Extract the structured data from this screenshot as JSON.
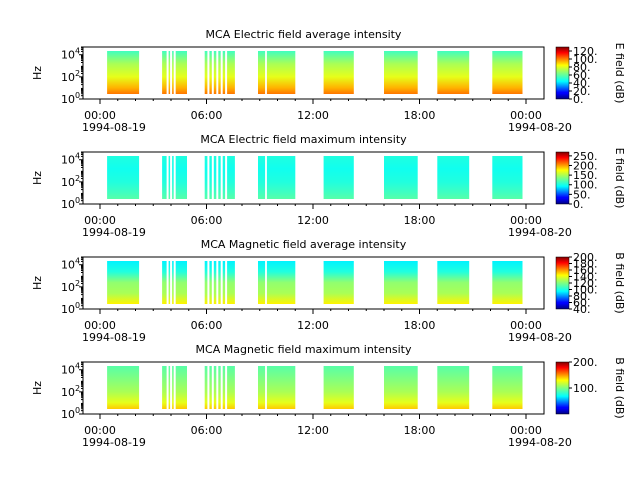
{
  "chart_data": [
    {
      "type": "heatmap",
      "title": "MCA  Electric field average intensity",
      "ylabel": "Hz",
      "yscale": "log",
      "ylim": [
        1,
        50000
      ],
      "yticks": [
        "10^0",
        "10^2",
        "10^4"
      ],
      "xticks": [
        "00:00",
        "06:00",
        "12:00",
        "18:00",
        "00:00"
      ],
      "date_start": "1994-08-19",
      "date_end": "1994-08-20",
      "colorbar": {
        "label": "E field (dB)",
        "min": 0,
        "max": 130,
        "ticks": [
          "0.",
          "20.",
          "40.",
          "60.",
          "80.",
          "100.",
          "120."
        ]
      },
      "palette": "average_e"
    },
    {
      "type": "heatmap",
      "title": "MCA  Electric field maximum intensity",
      "ylabel": "Hz",
      "yscale": "log",
      "ylim": [
        1,
        50000
      ],
      "yticks": [
        "10^0",
        "10^2",
        "10^4"
      ],
      "xticks": [
        "00:00",
        "06:00",
        "12:00",
        "18:00",
        "00:00"
      ],
      "date_start": "1994-08-19",
      "date_end": "1994-08-20",
      "colorbar": {
        "label": "E field (dB)",
        "min": 0,
        "max": 270,
        "ticks": [
          "0.",
          "50.",
          "100.",
          "150.",
          "200.",
          "250."
        ]
      },
      "palette": "max_e"
    },
    {
      "type": "heatmap",
      "title": "MCA  Magnetic field average intensity",
      "ylabel": "Hz",
      "yscale": "log",
      "ylim": [
        1,
        50000
      ],
      "yticks": [
        "10^0",
        "10^2",
        "10^4"
      ],
      "xticks": [
        "00:00",
        "06:00",
        "12:00",
        "18:00",
        "00:00"
      ],
      "date_start": "1994-08-19",
      "date_end": "1994-08-20",
      "colorbar": {
        "label": "B field (dB)",
        "min": 40,
        "max": 200,
        "ticks": [
          "40.",
          "60.",
          "80.",
          "100.",
          "120.",
          "140.",
          "160.",
          "180.",
          "200."
        ]
      },
      "palette": "average_b"
    },
    {
      "type": "heatmap",
      "title": "MCA  Magnetic field maximum intensity",
      "ylabel": "Hz",
      "yscale": "log",
      "ylim": [
        1,
        50000
      ],
      "yticks": [
        "10^0",
        "10^2",
        "10^4"
      ],
      "xticks": [
        "00:00",
        "06:00",
        "12:00",
        "18:00",
        "00:00"
      ],
      "date_start": "1994-08-19",
      "date_end": "1994-08-20",
      "colorbar": {
        "label": "B field (dB)",
        "min": 0,
        "max": 200,
        "ticks": [
          "100.",
          "200."
        ]
      },
      "palette": "max_b"
    }
  ],
  "data_segments_hours": [
    [
      0.4,
      2.2
    ],
    [
      3.5,
      4.9
    ],
    [
      5.9,
      7.6
    ],
    [
      8.9,
      9.3
    ],
    [
      9.4,
      11.0
    ],
    [
      12.6,
      14.3
    ],
    [
      16.0,
      17.9
    ],
    [
      19.0,
      20.8
    ],
    [
      22.1,
      23.8
    ]
  ],
  "gap_hours": [
    3.75,
    3.95,
    4.15,
    6.05,
    6.3,
    6.55,
    6.8,
    7.05
  ]
}
